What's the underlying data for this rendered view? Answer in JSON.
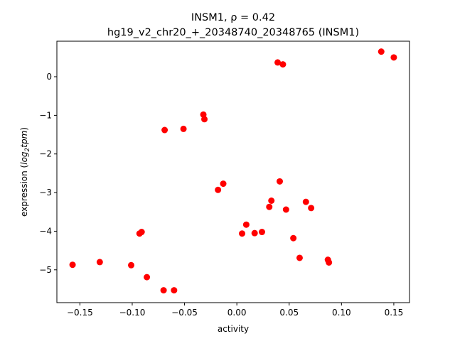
{
  "chart_data": {
    "type": "scatter",
    "title_line1": "INSM1, ρ = 0.42",
    "title_line2": "hg19_v2_chr20_+_20348740_20348765 (INSM1)",
    "xlabel": "activity",
    "ylabel_prefix": "expression (",
    "ylabel_math": "log",
    "ylabel_sub": "2",
    "ylabel_math2": "tpm",
    "ylabel_suffix": ")",
    "xlim": [
      -0.172,
      0.165
    ],
    "ylim": [
      -5.85,
      0.92
    ],
    "xticks": [
      -0.15,
      -0.1,
      -0.05,
      0.0,
      0.05,
      0.1,
      0.15
    ],
    "xtick_labels": [
      "−0.15",
      "−0.10",
      "−0.05",
      "0.00",
      "0.05",
      "0.10",
      "0.15"
    ],
    "yticks": [
      -5,
      -4,
      -3,
      -2,
      -1,
      0
    ],
    "ytick_labels": [
      "−5",
      "−4",
      "−3",
      "−2",
      "−1",
      "0"
    ],
    "marker_color": "#ff0000",
    "points": [
      {
        "x": -0.157,
        "y": -4.87
      },
      {
        "x": -0.131,
        "y": -4.8
      },
      {
        "x": -0.101,
        "y": -4.88
      },
      {
        "x": -0.093,
        "y": -4.06
      },
      {
        "x": -0.091,
        "y": -4.02
      },
      {
        "x": -0.086,
        "y": -5.19
      },
      {
        "x": -0.07,
        "y": -5.53
      },
      {
        "x": -0.069,
        "y": -1.38
      },
      {
        "x": -0.06,
        "y": -5.53
      },
      {
        "x": -0.051,
        "y": -1.35
      },
      {
        "x": -0.032,
        "y": -0.98
      },
      {
        "x": -0.031,
        "y": -1.1
      },
      {
        "x": -0.018,
        "y": -2.93
      },
      {
        "x": -0.013,
        "y": -2.77
      },
      {
        "x": 0.005,
        "y": -4.06
      },
      {
        "x": 0.009,
        "y": -3.83
      },
      {
        "x": 0.017,
        "y": -4.05
      },
      {
        "x": 0.024,
        "y": -4.02
      },
      {
        "x": 0.031,
        "y": -3.37
      },
      {
        "x": 0.033,
        "y": -3.21
      },
      {
        "x": 0.039,
        "y": 0.37
      },
      {
        "x": 0.041,
        "y": -2.71
      },
      {
        "x": 0.044,
        "y": 0.32
      },
      {
        "x": 0.047,
        "y": -3.44
      },
      {
        "x": 0.054,
        "y": -4.18
      },
      {
        "x": 0.06,
        "y": -4.69
      },
      {
        "x": 0.066,
        "y": -3.24
      },
      {
        "x": 0.071,
        "y": -3.4
      },
      {
        "x": 0.087,
        "y": -4.74
      },
      {
        "x": 0.088,
        "y": -4.81
      },
      {
        "x": 0.138,
        "y": 0.65
      },
      {
        "x": 0.15,
        "y": 0.5
      }
    ]
  }
}
